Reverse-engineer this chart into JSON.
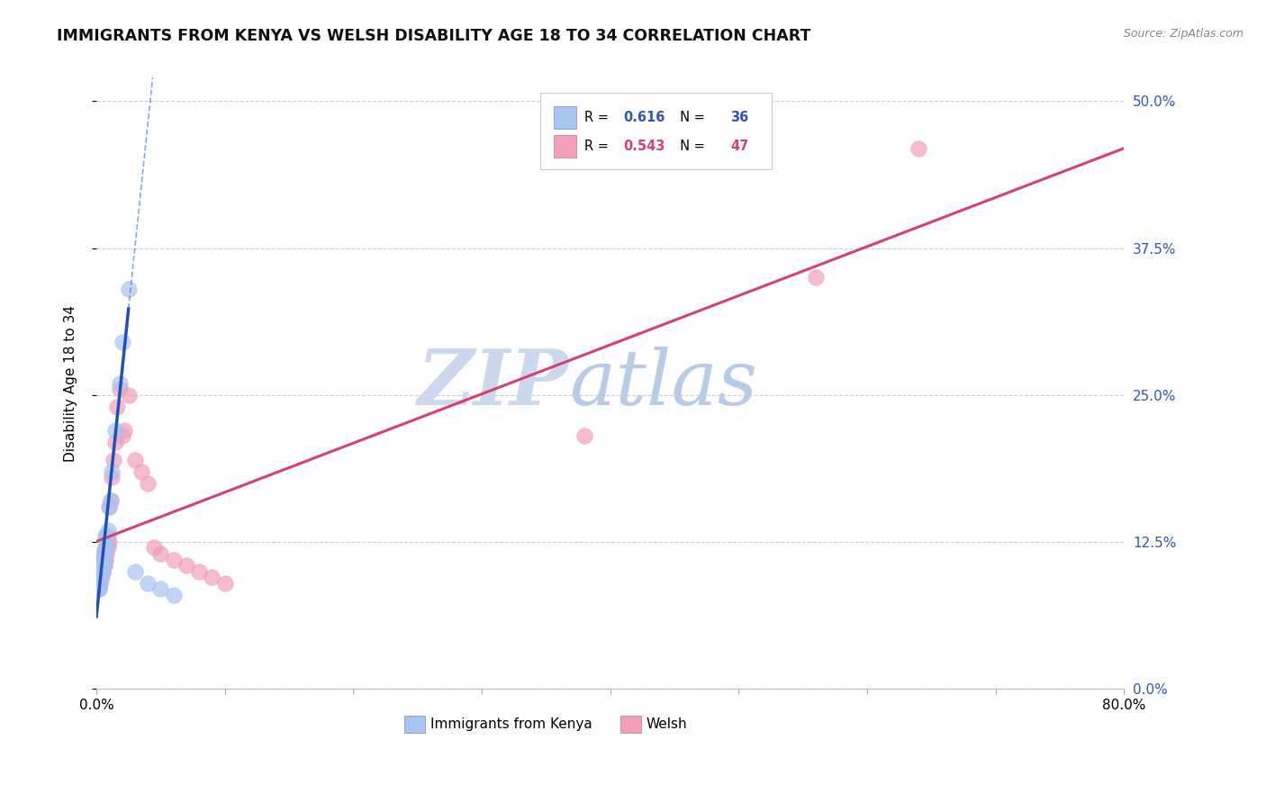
{
  "title": "IMMIGRANTS FROM KENYA VS WELSH DISABILITY AGE 18 TO 34 CORRELATION CHART",
  "source": "Source: ZipAtlas.com",
  "ylabel": "Disability Age 18 to 34",
  "xlim": [
    0.0,
    0.8
  ],
  "ylim": [
    0.0,
    0.52
  ],
  "ytick_positions": [
    0.0,
    0.125,
    0.25,
    0.375,
    0.5
  ],
  "ytick_labels_right": [
    "0.0%",
    "12.5%",
    "25.0%",
    "37.5%",
    "50.0%"
  ],
  "xtick_positions": [
    0.0,
    0.1,
    0.2,
    0.3,
    0.4,
    0.5,
    0.6,
    0.7,
    0.8
  ],
  "xtick_labels": [
    "0.0%",
    "",
    "",
    "",
    "",
    "",
    "",
    "",
    "80.0%"
  ],
  "kenya_R": "0.616",
  "kenya_N": "36",
  "welsh_R": "0.543",
  "welsh_N": "47",
  "kenya_dot_color": "#a8c4f0",
  "welsh_dot_color": "#f0a0b8",
  "kenya_line_color": "#2050b8",
  "welsh_line_color": "#d84070",
  "kenya_scatter_x": [
    0.001,
    0.001,
    0.001,
    0.002,
    0.002,
    0.002,
    0.002,
    0.003,
    0.003,
    0.003,
    0.003,
    0.004,
    0.004,
    0.004,
    0.005,
    0.005,
    0.005,
    0.006,
    0.006,
    0.006,
    0.007,
    0.007,
    0.008,
    0.008,
    0.009,
    0.01,
    0.011,
    0.012,
    0.015,
    0.018,
    0.02,
    0.025,
    0.03,
    0.04,
    0.05,
    0.06
  ],
  "kenya_scatter_y": [
    0.085,
    0.09,
    0.095,
    0.085,
    0.09,
    0.095,
    0.1,
    0.09,
    0.095,
    0.1,
    0.105,
    0.1,
    0.105,
    0.11,
    0.1,
    0.11,
    0.115,
    0.105,
    0.11,
    0.115,
    0.12,
    0.13,
    0.12,
    0.13,
    0.135,
    0.155,
    0.16,
    0.185,
    0.22,
    0.26,
    0.295,
    0.34,
    0.1,
    0.09,
    0.085,
    0.08
  ],
  "welsh_scatter_x": [
    0.001,
    0.001,
    0.002,
    0.002,
    0.002,
    0.003,
    0.003,
    0.003,
    0.004,
    0.004,
    0.004,
    0.005,
    0.005,
    0.005,
    0.006,
    0.006,
    0.006,
    0.007,
    0.007,
    0.008,
    0.008,
    0.009,
    0.009,
    0.01,
    0.01,
    0.011,
    0.012,
    0.013,
    0.015,
    0.016,
    0.018,
    0.02,
    0.022,
    0.025,
    0.03,
    0.035,
    0.04,
    0.045,
    0.05,
    0.06,
    0.07,
    0.08,
    0.09,
    0.1,
    0.38,
    0.56,
    0.64
  ],
  "welsh_scatter_y": [
    0.09,
    0.095,
    0.085,
    0.09,
    0.095,
    0.09,
    0.095,
    0.1,
    0.095,
    0.1,
    0.105,
    0.1,
    0.105,
    0.11,
    0.105,
    0.11,
    0.115,
    0.11,
    0.12,
    0.115,
    0.125,
    0.12,
    0.13,
    0.125,
    0.155,
    0.16,
    0.18,
    0.195,
    0.21,
    0.24,
    0.255,
    0.215,
    0.22,
    0.25,
    0.195,
    0.185,
    0.175,
    0.12,
    0.115,
    0.11,
    0.105,
    0.1,
    0.095,
    0.09,
    0.215,
    0.35,
    0.46
  ],
  "watermark_zip": "ZIP",
  "watermark_atlas": "atlas",
  "watermark_color_zip": "#ccd8ee",
  "watermark_color_atlas": "#b8cce8",
  "legend_label1": "Immigrants from Kenya",
  "legend_label2": "Welsh",
  "background_color": "#ffffff",
  "grid_color": "#ccccdd",
  "right_tick_color": "#3355bb",
  "kenya_rv_color": "#3355bb",
  "welsh_rv_color": "#d84070"
}
